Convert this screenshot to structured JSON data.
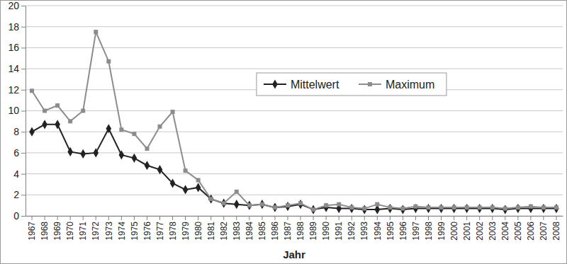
{
  "chart_data": {
    "type": "line",
    "x_label": "Jahr",
    "categories": [
      "1967",
      "1968",
      "1969",
      "1970",
      "1971",
      "1972",
      "1973",
      "1974",
      "1975",
      "1976",
      "1977",
      "1978",
      "1979",
      "1980",
      "1981",
      "1982",
      "1983",
      "1984",
      "1985",
      "1986",
      "1987",
      "1988",
      "1989",
      "1990",
      "1991",
      "1992",
      "1993",
      "1994",
      "1995",
      "1996",
      "1997",
      "1998",
      "1999",
      "2000",
      "2001",
      "2002",
      "2003",
      "2004",
      "2005",
      "2006",
      "2007",
      "2008"
    ],
    "series": [
      {
        "name": "Mittelwert",
        "color": "#222222",
        "marker": "diamond",
        "values": [
          8.0,
          8.7,
          8.7,
          6.1,
          5.9,
          6.0,
          8.3,
          5.8,
          5.5,
          4.8,
          4.4,
          3.1,
          2.5,
          2.7,
          1.6,
          1.2,
          1.1,
          1.0,
          1.1,
          0.8,
          0.9,
          1.1,
          0.6,
          0.8,
          0.7,
          0.7,
          0.6,
          0.6,
          0.7,
          0.6,
          0.7,
          0.7,
          0.7,
          0.7,
          0.7,
          0.7,
          0.7,
          0.6,
          0.7,
          0.7,
          0.7,
          0.7
        ]
      },
      {
        "name": "Maximum",
        "color": "#8c8c8c",
        "marker": "square",
        "values": [
          11.9,
          10.0,
          10.5,
          9.0,
          10.0,
          17.5,
          14.7,
          8.2,
          7.8,
          6.4,
          8.5,
          9.9,
          4.3,
          3.4,
          1.6,
          1.2,
          2.3,
          1.0,
          1.1,
          0.8,
          1.0,
          1.2,
          0.6,
          1.0,
          1.1,
          0.8,
          0.7,
          1.1,
          0.8,
          0.7,
          0.9,
          0.8,
          0.8,
          0.8,
          0.8,
          0.8,
          0.8,
          0.7,
          0.8,
          0.9,
          0.8,
          0.8
        ]
      }
    ],
    "ylim": [
      0,
      20
    ],
    "yticks": [
      0,
      2,
      4,
      6,
      8,
      10,
      12,
      14,
      16,
      18,
      20
    ],
    "grid": true,
    "legend": "top"
  }
}
